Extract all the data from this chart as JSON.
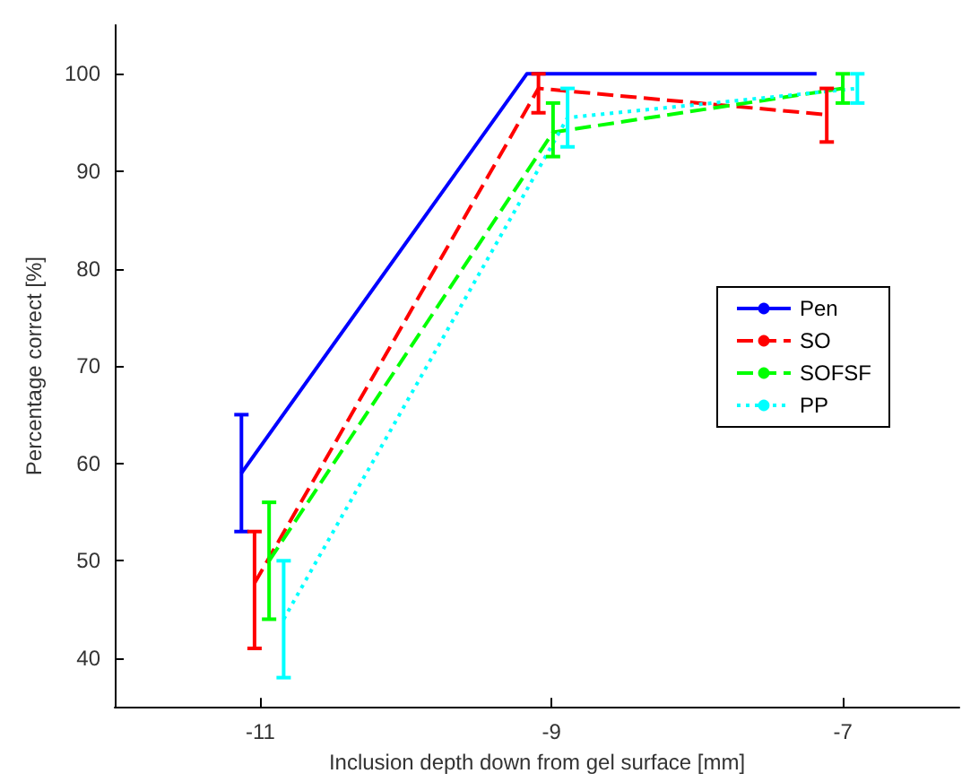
{
  "chart_data": {
    "type": "line",
    "xlabel": "Inclusion depth down from gel surface [mm]",
    "ylabel": "Percentage correct [%]",
    "xlim": [
      -12,
      -6.2
    ],
    "xticks": [
      -11,
      -9,
      -7
    ],
    "ylim": [
      35,
      105
    ],
    "yticks": [
      40,
      50,
      60,
      70,
      80,
      90,
      100
    ],
    "grid": false,
    "legend": "right",
    "marker": "none",
    "series": [
      {
        "name": "Pen",
        "color": "#0000ff",
        "line_style": "solid",
        "x": [
          -11.13,
          -9.17,
          -7.18
        ],
        "values": [
          59,
          100,
          100
        ],
        "errors": [
          [
            53,
            65
          ],
          null,
          null
        ]
      },
      {
        "name": "SO",
        "color": "#ff0000",
        "line_style": "dashed",
        "x": [
          -11.04,
          -9.09,
          -7.11
        ],
        "values": [
          47.7,
          98.5,
          95.8
        ],
        "errors": [
          [
            41,
            53
          ],
          [
            96,
            100
          ],
          [
            93,
            98.5
          ]
        ]
      },
      {
        "name": "SOFSF",
        "color": "#00ff00",
        "line_style": "dashed",
        "x": [
          -10.94,
          -8.99,
          -7.0
        ],
        "values": [
          50,
          94,
          98.5
        ],
        "errors": [
          [
            44,
            56
          ],
          [
            91.5,
            97
          ],
          [
            97,
            100
          ]
        ]
      },
      {
        "name": "PP",
        "color": "#00ffff",
        "line_style": "dotted",
        "x": [
          -10.84,
          -8.89,
          -6.9
        ],
        "values": [
          44,
          95.5,
          98.5
        ],
        "errors": [
          [
            38,
            50
          ],
          [
            92.5,
            98.5
          ],
          [
            97,
            100
          ]
        ]
      }
    ]
  }
}
